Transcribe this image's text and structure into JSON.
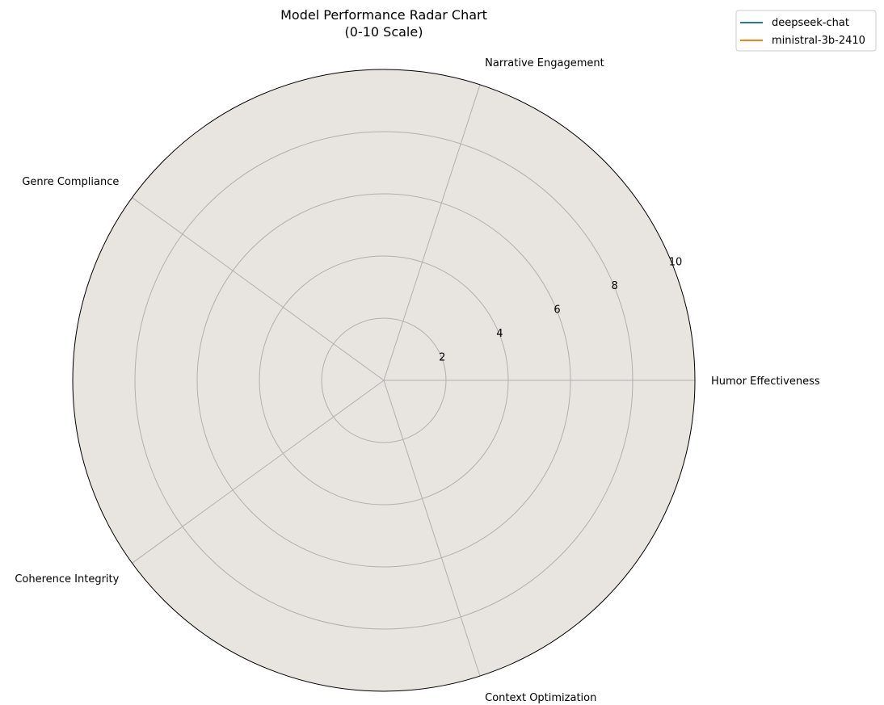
{
  "chart_data": {
    "type": "radar",
    "title": "Model Performance Radar Chart",
    "subtitle": "(0-10 Scale)",
    "axes": [
      "Humor Effectiveness",
      "Narrative Engagement",
      "Genre Compliance",
      "Coherence Integrity",
      "Context Optimization"
    ],
    "rlim": [
      0,
      10
    ],
    "r_ticks": [
      "2",
      "4",
      "6",
      "8",
      "10"
    ],
    "r_tick_values": [
      2,
      4,
      6,
      8,
      10
    ],
    "grid": true,
    "background_color": "#e8e4df",
    "legend_position": "top-right",
    "series": [
      {
        "name": "deepseek-chat",
        "color": "#1f77b4",
        "values": [
          null,
          null,
          null,
          null,
          null
        ]
      },
      {
        "name": "ministral-3b-2410",
        "color": "#ff7f0e",
        "values": [
          null,
          null,
          null,
          null,
          null
        ]
      }
    ]
  }
}
